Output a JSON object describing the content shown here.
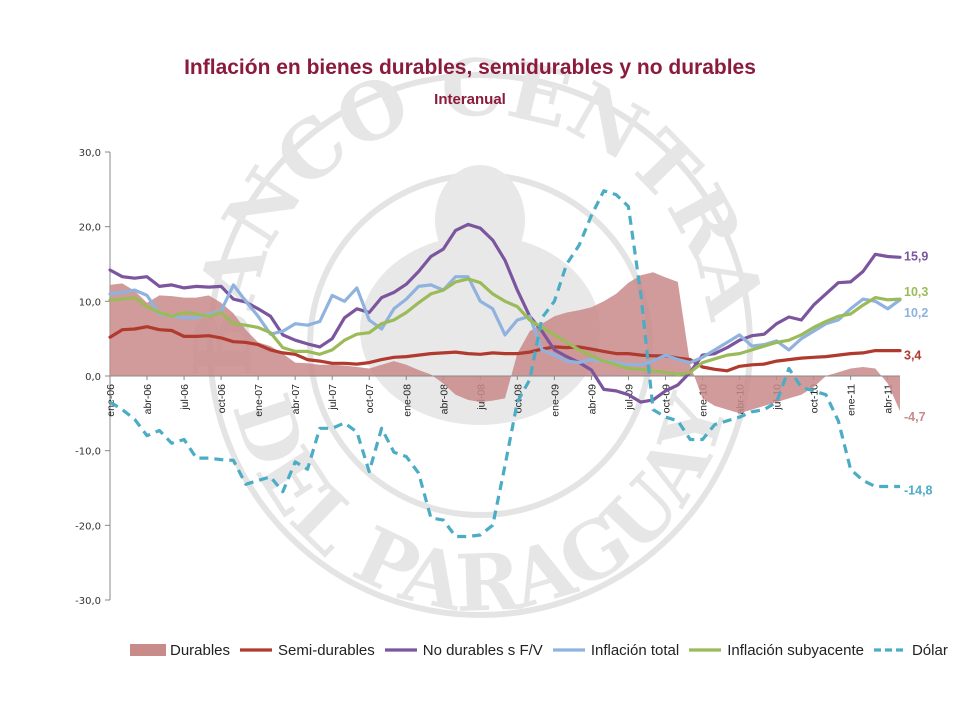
{
  "title": "Inflación en bienes durables, semidurables y no durables",
  "subtitle": "Interanual",
  "watermark": {
    "text_top": "BANCO CENTRAL",
    "text_bottom": "DEL PARAGUAY"
  },
  "colors": {
    "title": "#8b1a3c",
    "durables": "#c98a8a",
    "semi_durables": "#b03a2e",
    "no_durables": "#7b559e",
    "inflacion_total": "#8fb3de",
    "inflacion_subyacente": "#9bbb59",
    "dolar": "#4bacc6"
  },
  "chart_data": {
    "type": "line",
    "ylim": [
      -30,
      30
    ],
    "yticks": [
      "30,0",
      "20,0",
      "10,0",
      "0,0",
      "-10,0",
      "-20,0",
      "-30,0"
    ],
    "x_tick_labels": [
      "ene-06",
      "abr-06",
      "jul-06",
      "oct-06",
      "ene-07",
      "abr-07",
      "jul-07",
      "oct-07",
      "ene-08",
      "abr-08",
      "jul-08",
      "oct-08",
      "ene-09",
      "abr-09",
      "jul-09",
      "oct-09",
      "ene-10",
      "abr-10",
      "jul-10",
      "oct-10",
      "ene-11",
      "abr-11"
    ],
    "x_months": [
      "ene-06",
      "feb-06",
      "mar-06",
      "abr-06",
      "may-06",
      "jun-06",
      "jul-06",
      "ago-06",
      "sep-06",
      "oct-06",
      "nov-06",
      "dic-06",
      "ene-07",
      "feb-07",
      "mar-07",
      "abr-07",
      "may-07",
      "jun-07",
      "jul-07",
      "ago-07",
      "sep-07",
      "oct-07",
      "nov-07",
      "dic-07",
      "ene-08",
      "feb-08",
      "mar-08",
      "abr-08",
      "may-08",
      "jun-08",
      "jul-08",
      "ago-08",
      "sep-08",
      "oct-08",
      "nov-08",
      "dic-08",
      "ene-09",
      "feb-09",
      "mar-09",
      "abr-09",
      "may-09",
      "jun-09",
      "jul-09",
      "ago-09",
      "sep-09",
      "oct-09",
      "nov-09",
      "dic-09",
      "ene-10",
      "feb-10",
      "mar-10",
      "abr-10",
      "may-10",
      "jun-10",
      "jul-10",
      "ago-10",
      "sep-10",
      "oct-10",
      "nov-10",
      "dic-10",
      "ene-11",
      "feb-11",
      "mar-11",
      "abr-11",
      "may-11"
    ],
    "series": [
      {
        "name": "Durables",
        "kind": "area",
        "end_label": "-4,7",
        "values": [
          12.2,
          12.4,
          11.4,
          9.8,
          10.8,
          10.7,
          10.5,
          10.5,
          10.8,
          9.8,
          8.4,
          6.2,
          4.5,
          4.0,
          3.0,
          1.8,
          1.7,
          1.5,
          1.5,
          1.4,
          1.2,
          1.0,
          1.5,
          2.0,
          1.5,
          0.8,
          0.2,
          -1.0,
          -2.5,
          -3.2,
          -3.5,
          -3.3,
          -3.0,
          3.0,
          6.0,
          7.0,
          8.0,
          8.5,
          8.8,
          9.2,
          10.0,
          11.0,
          12.5,
          13.5,
          13.9,
          13.2,
          12.6,
          1.5,
          -3.0,
          -4.0,
          -4.5,
          -5.0,
          -4.5,
          -4.0,
          -3.5,
          -3.0,
          -2.5,
          -1.5,
          0.0,
          0.5,
          1.0,
          1.2,
          1.0,
          -1.0,
          -4.7
        ]
      },
      {
        "name": "Semi-durables",
        "kind": "line",
        "end_label": "3,4",
        "values": [
          5.2,
          6.2,
          6.3,
          6.6,
          6.2,
          6.1,
          5.3,
          5.3,
          5.4,
          5.1,
          4.6,
          4.5,
          4.2,
          3.5,
          3.1,
          2.9,
          2.2,
          2.0,
          1.7,
          1.7,
          1.6,
          1.8,
          2.2,
          2.5,
          2.6,
          2.8,
          3.0,
          3.1,
          3.2,
          3.0,
          2.9,
          3.1,
          3.0,
          3.0,
          3.2,
          3.6,
          3.9,
          3.8,
          3.9,
          3.6,
          3.3,
          3.0,
          3.0,
          2.8,
          2.7,
          2.7,
          2.4,
          2.2,
          1.2,
          0.9,
          0.7,
          1.3,
          1.5,
          1.6,
          2.0,
          2.2,
          2.4,
          2.5,
          2.6,
          2.8,
          3.0,
          3.1,
          3.4,
          3.4,
          3.4
        ]
      },
      {
        "name": "No durables s F/V",
        "kind": "line",
        "end_label": "15,9",
        "values": [
          14.2,
          13.3,
          13.1,
          13.3,
          12.0,
          12.2,
          11.8,
          12.0,
          11.9,
          12.0,
          10.3,
          9.9,
          9.0,
          8.0,
          5.5,
          4.8,
          4.3,
          3.9,
          5.0,
          7.8,
          9.0,
          8.5,
          10.5,
          11.2,
          12.3,
          14.0,
          16.0,
          17.0,
          19.5,
          20.3,
          19.8,
          18.2,
          15.5,
          11.5,
          8.0,
          6.0,
          3.5,
          2.6,
          1.8,
          0.8,
          -1.8,
          -2.0,
          -2.5,
          -3.5,
          -3.2,
          -2.0,
          -1.2,
          0.5,
          2.8,
          3.0,
          3.8,
          4.8,
          5.4,
          5.6,
          7.0,
          7.9,
          7.5,
          9.5,
          11.0,
          12.5,
          12.6,
          14.0,
          16.3,
          16.0,
          15.9
        ]
      },
      {
        "name": "Inflación total",
        "kind": "line",
        "end_label": "10,2",
        "values": [
          11.0,
          11.2,
          11.5,
          10.8,
          8.3,
          8.0,
          7.8,
          7.8,
          8.3,
          8.7,
          12.2,
          10.0,
          8.0,
          5.6,
          6.0,
          7.0,
          6.8,
          7.3,
          10.8,
          10.0,
          11.8,
          7.5,
          6.3,
          9.0,
          10.3,
          12.0,
          12.2,
          11.5,
          13.3,
          13.3,
          10.0,
          9.0,
          5.5,
          7.5,
          8.0,
          3.5,
          2.8,
          2.0,
          1.8,
          2.2,
          2.0,
          1.8,
          1.5,
          1.5,
          2.0,
          2.8,
          2.2,
          1.8,
          2.5,
          3.5,
          4.5,
          5.5,
          4.0,
          4.2,
          4.7,
          3.5,
          5.0,
          6.0,
          7.0,
          7.5,
          9.0,
          10.3,
          10.0,
          9.0,
          10.2
        ]
      },
      {
        "name": "Inflación subyacente",
        "kind": "line",
        "end_label": "10,3",
        "values": [
          10.2,
          10.3,
          10.5,
          9.3,
          8.5,
          8.0,
          8.5,
          8.3,
          8.0,
          8.5,
          7.0,
          6.8,
          6.5,
          5.8,
          3.8,
          3.3,
          3.3,
          2.9,
          3.5,
          4.8,
          5.6,
          5.8,
          7.0,
          7.5,
          8.5,
          9.8,
          11.0,
          11.5,
          12.6,
          13.0,
          12.5,
          11.0,
          10.0,
          9.3,
          7.5,
          6.5,
          5.5,
          4.5,
          3.5,
          2.7,
          2.0,
          1.5,
          1.0,
          0.9,
          0.7,
          0.5,
          0.2,
          0.5,
          1.8,
          2.3,
          2.8,
          3.0,
          3.5,
          4.0,
          4.5,
          4.8,
          5.5,
          6.5,
          7.3,
          8.0,
          8.3,
          9.5,
          10.5,
          10.2,
          10.3
        ]
      },
      {
        "name": "Dólar",
        "kind": "dashed",
        "end_label": "-14,8",
        "values": [
          -3.5,
          -4.5,
          -5.8,
          -8.0,
          -7.3,
          -9.0,
          -8.5,
          -11.0,
          -11.0,
          -11.2,
          -11.3,
          -14.5,
          -14.0,
          -13.5,
          -15.5,
          -11.5,
          -12.5,
          -7.0,
          -7.0,
          -6.3,
          -7.5,
          -12.8,
          -7.0,
          -10.2,
          -10.8,
          -13.0,
          -19.0,
          -19.3,
          -21.5,
          -21.5,
          -21.3,
          -20.0,
          -12.0,
          -3.5,
          -0.5,
          7.8,
          10.0,
          15.0,
          17.5,
          21.5,
          24.8,
          24.3,
          22.7,
          11.0,
          -4.5,
          -5.5,
          -6.0,
          -8.5,
          -8.5,
          -6.5,
          -6.0,
          -5.5,
          -4.8,
          -4.5,
          -3.5,
          1.0,
          -1.5,
          -2.0,
          -2.5,
          -6.0,
          -12.5,
          -14.0,
          -14.8,
          -14.8,
          -14.8
        ]
      }
    ]
  }
}
